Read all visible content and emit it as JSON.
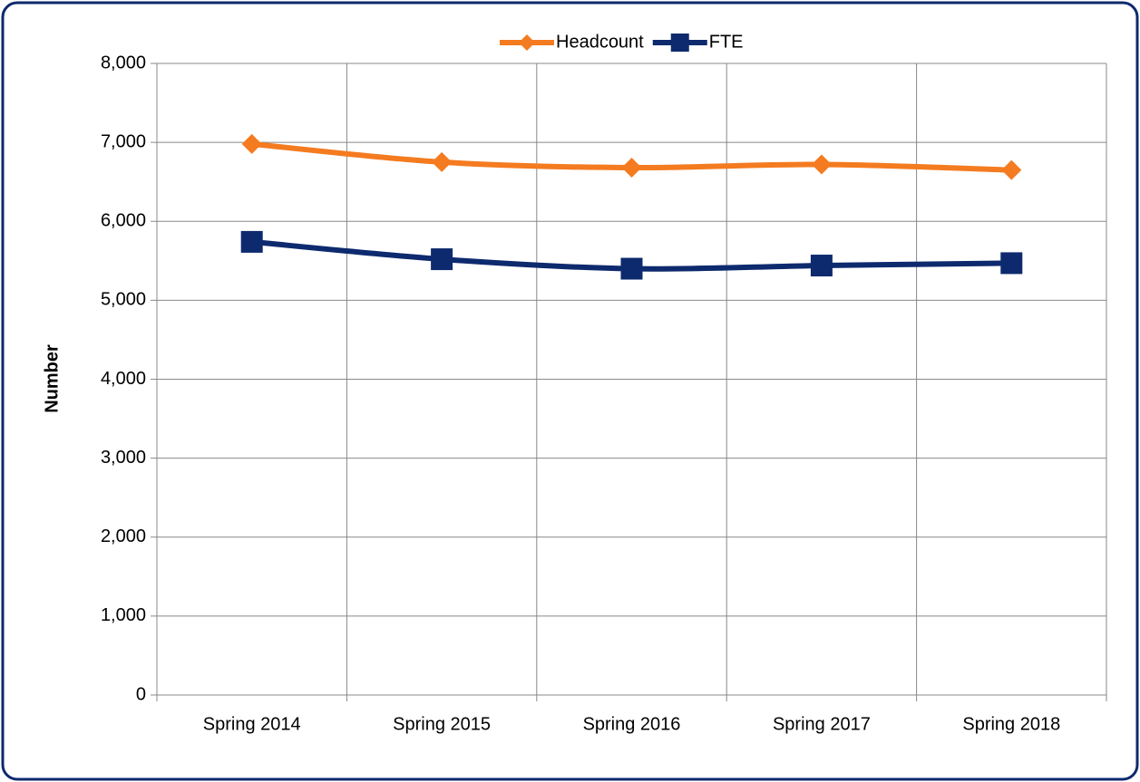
{
  "chart_data": {
    "type": "line",
    "y_label": "Number",
    "categories": [
      "Spring 2014",
      "Spring 2015",
      "Spring 2016",
      "Spring 2017",
      "Spring 2018"
    ],
    "series": [
      {
        "name": "Headcount",
        "color": "#f47b20",
        "marker": "diamond",
        "values": [
          6980,
          6750,
          6680,
          6720,
          6650
        ]
      },
      {
        "name": "FTE",
        "color": "#0e2a6e",
        "marker": "square",
        "values": [
          5740,
          5520,
          5400,
          5440,
          5470
        ]
      }
    ],
    "ylim": [
      0,
      8000
    ],
    "yticks": [
      0,
      {
        "value": 1000,
        "label": "1,000"
      },
      {
        "value": 2000,
        "label": "2,000"
      },
      {
        "value": 3000,
        "label": "3,000"
      },
      {
        "value": 4000,
        "label": "4,000"
      },
      {
        "value": 5000,
        "label": "5,000"
      },
      {
        "value": 6000,
        "label": "6,000"
      },
      {
        "value": 7000,
        "label": "7,000"
      },
      {
        "value": 8000,
        "label": "8,000"
      }
    ],
    "grid": true,
    "legend": "top"
  }
}
